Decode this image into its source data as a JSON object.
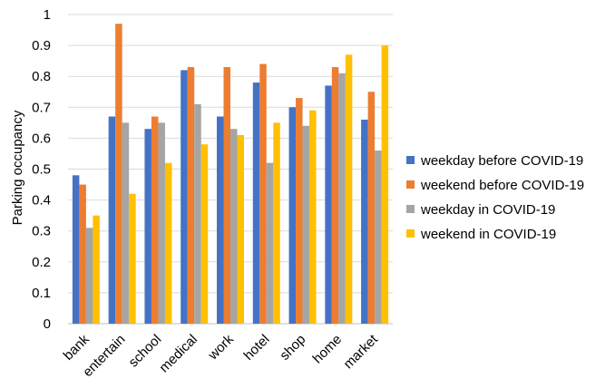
{
  "chart_data": {
    "type": "bar",
    "title": "",
    "xlabel": "",
    "ylabel": "Parking occupancy",
    "ylim": [
      0,
      1
    ],
    "yticks": [
      "0",
      "0.1",
      "0.2",
      "0.3",
      "0.4",
      "0.5",
      "0.6",
      "0.7",
      "0.8",
      "0.9",
      "1"
    ],
    "grid": true,
    "legend_position": "right",
    "categories": [
      "bank",
      "entertain",
      "school",
      "medical",
      "work",
      "hotel",
      "shop",
      "home",
      "market"
    ],
    "series": [
      {
        "name": "weekday before COVID-19",
        "color": "#4472c4",
        "values": [
          0.48,
          0.67,
          0.63,
          0.82,
          0.67,
          0.78,
          0.7,
          0.77,
          0.66
        ]
      },
      {
        "name": "weekend before COVID-19",
        "color": "#ed7d31",
        "values": [
          0.45,
          0.97,
          0.67,
          0.83,
          0.83,
          0.84,
          0.73,
          0.83,
          0.75
        ]
      },
      {
        "name": "weekday in COVID-19",
        "color": "#a5a5a5",
        "values": [
          0.31,
          0.65,
          0.65,
          0.71,
          0.63,
          0.52,
          0.64,
          0.81,
          0.56
        ]
      },
      {
        "name": "weekend in COVID-19",
        "color": "#ffc000",
        "values": [
          0.35,
          0.42,
          0.52,
          0.58,
          0.61,
          0.65,
          0.69,
          0.87,
          0.9
        ]
      }
    ]
  }
}
